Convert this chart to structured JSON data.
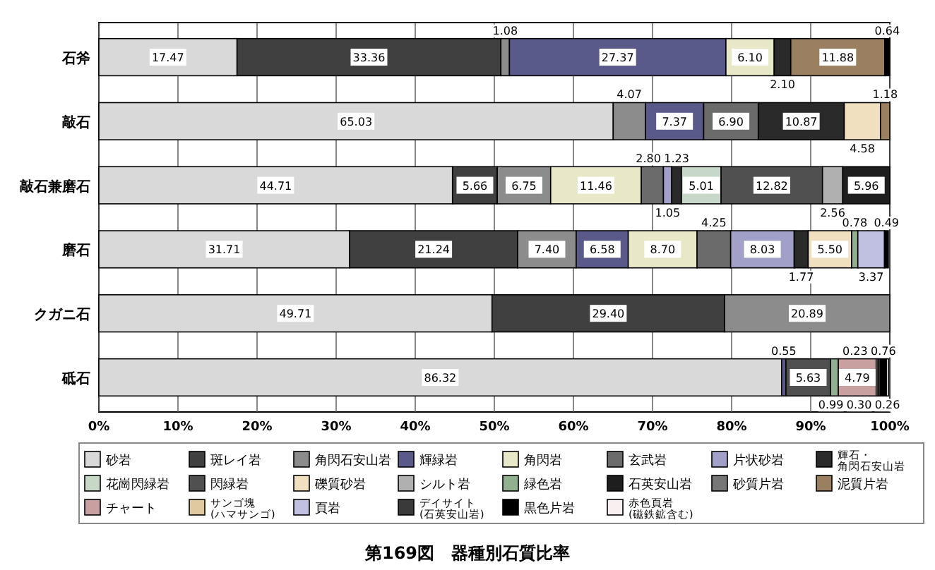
{
  "chart_data": {
    "type": "bar",
    "orientation": "horizontal",
    "stacked": true,
    "title": "第169図　器種別石質比率",
    "categories": [
      "石斧",
      "敲石",
      "敲石兼磨石",
      "磨石",
      "クガニ石",
      "砥石"
    ],
    "xlim": [
      0,
      100
    ],
    "xticks": [
      {
        "value": 0,
        "label": "0%"
      },
      {
        "value": 10,
        "label": "10%"
      },
      {
        "value": 20,
        "label": "20%"
      },
      {
        "value": 30,
        "label": "30%"
      },
      {
        "value": 40,
        "label": "40%"
      },
      {
        "value": 50,
        "label": "50%"
      },
      {
        "value": 60,
        "label": "60%"
      },
      {
        "value": 70,
        "label": "70%"
      },
      {
        "value": 80,
        "label": "80%"
      },
      {
        "value": 90,
        "label": "90%"
      },
      {
        "value": 100,
        "label": "100%"
      }
    ],
    "grid": "x",
    "legend": "bottom",
    "series": [
      {
        "name": "砂岩",
        "color": "#d9d9d9",
        "values": [
          17.47,
          65.03,
          44.71,
          31.71,
          49.71,
          86.32
        ],
        "value_labels": [
          "17.47",
          "65.03",
          "44.71",
          "31.71",
          "49.71",
          "86.32"
        ]
      },
      {
        "name": "斑レイ岩",
        "color": "#404040",
        "values": [
          33.36,
          null,
          5.66,
          21.24,
          29.4,
          null
        ],
        "value_labels": [
          "33.36",
          null,
          "5.66",
          "21.24",
          "29.40",
          null
        ]
      },
      {
        "name": "角閃石安山岩",
        "color": "#8c8c8c",
        "values": [
          1.08,
          4.07,
          6.75,
          7.4,
          20.89,
          null
        ],
        "value_labels": [
          "1.08",
          "4.07",
          "6.75",
          "7.40",
          "20.89",
          null
        ]
      },
      {
        "name": "輝緑岩",
        "color": "#5a5a8a",
        "values": [
          27.37,
          7.37,
          null,
          6.58,
          null,
          0.55
        ],
        "value_labels": [
          "27.37",
          "7.37",
          null,
          "6.58",
          null,
          "0.55"
        ]
      },
      {
        "name": "角閃岩",
        "color": "#e8e8c8",
        "values": [
          6.1,
          null,
          11.46,
          8.7,
          null,
          null
        ],
        "value_labels": [
          "6.10",
          null,
          "11.46",
          "8.70",
          null,
          null
        ]
      },
      {
        "name": "玄武岩",
        "color": "#6b6b6b",
        "values": [
          null,
          6.9,
          2.8,
          4.25,
          null,
          null
        ],
        "value_labels": [
          null,
          "6.90",
          "2.80",
          "4.25",
          null,
          null
        ]
      },
      {
        "name": "片状砂岩",
        "color": "#a0a0c8",
        "values": [
          null,
          null,
          1.05,
          8.03,
          null,
          null
        ],
        "value_labels": [
          null,
          null,
          "1.05",
          "8.03",
          null,
          null
        ]
      },
      {
        "name": "輝石・角閃石安山岩",
        "color": "#2a2a2a",
        "values": [
          2.1,
          10.87,
          1.23,
          1.77,
          null,
          null
        ],
        "value_labels": [
          "2.10",
          "10.87",
          "1.23",
          "1.77",
          null,
          null
        ]
      },
      {
        "name": "花崗閃緑岩",
        "color": "#c8d8c8",
        "values": [
          null,
          null,
          5.01,
          null,
          null,
          null
        ],
        "value_labels": [
          null,
          null,
          "5.01",
          null,
          null,
          null
        ]
      },
      {
        "name": "閃緑岩",
        "color": "#505050",
        "values": [
          null,
          null,
          12.82,
          null,
          null,
          5.63
        ],
        "value_labels": [
          null,
          null,
          "12.82",
          null,
          null,
          "5.63"
        ]
      },
      {
        "name": "礫質砂岩",
        "color": "#f0e0c0",
        "values": [
          null,
          4.58,
          null,
          5.5,
          null,
          null
        ],
        "value_labels": [
          null,
          "4.58",
          null,
          "5.50",
          null,
          null
        ]
      },
      {
        "name": "シルト岩",
        "color": "#b0b0b0",
        "values": [
          null,
          null,
          2.56,
          null,
          null,
          null
        ],
        "value_labels": [
          null,
          null,
          "2.56",
          null,
          null,
          null
        ]
      },
      {
        "name": "緑色岩",
        "color": "#90b090",
        "values": [
          null,
          null,
          null,
          0.78,
          null,
          0.99
        ],
        "value_labels": [
          null,
          null,
          null,
          "0.78",
          null,
          "0.99"
        ]
      },
      {
        "name": "石英安山岩",
        "color": "#1e1e1e",
        "values": [
          null,
          null,
          5.96,
          null,
          null,
          null
        ],
        "value_labels": [
          null,
          null,
          "5.96",
          null,
          null,
          null
        ]
      },
      {
        "name": "砂質片岩",
        "color": "#777777",
        "values": [
          null,
          null,
          null,
          null,
          null,
          null
        ]
      },
      {
        "name": "泥質片岩",
        "color": "#9a8060",
        "values": [
          11.88,
          1.18,
          null,
          null,
          null,
          null
        ],
        "value_labels": [
          "11.88",
          "1.18",
          null,
          null,
          null,
          null
        ]
      },
      {
        "name": "チャート",
        "color": "#c8a0a0",
        "values": [
          null,
          null,
          null,
          null,
          null,
          4.79
        ],
        "value_labels": [
          null,
          null,
          null,
          null,
          null,
          "4.79"
        ]
      },
      {
        "name": "サンゴ塊(ハマサンゴ)",
        "color": "#e0c8a0",
        "values": [
          null,
          null,
          null,
          null,
          null,
          0.23
        ],
        "value_labels": [
          null,
          null,
          null,
          null,
          null,
          "0.23"
        ]
      },
      {
        "name": "頁岩",
        "color": "#c0c0e0",
        "values": [
          null,
          null,
          null,
          3.37,
          null,
          null
        ],
        "value_labels": [
          null,
          null,
          null,
          "3.37",
          null,
          null
        ]
      },
      {
        "name": "デイサイト(石英安山岩)",
        "color": "#3a3a3a",
        "values": [
          null,
          null,
          null,
          null,
          null,
          0.3
        ],
        "value_labels": [
          null,
          null,
          null,
          null,
          null,
          "0.30"
        ]
      },
      {
        "name": "黒色片岩",
        "color": "#000000",
        "values": [
          0.64,
          null,
          null,
          0.49,
          null,
          0.76
        ],
        "value_labels": [
          "0.64",
          null,
          null,
          "0.49",
          null,
          "0.76"
        ]
      },
      {
        "name": "赤色頁岩(磁鉄鉱含む)",
        "color": "#f8f0f0",
        "values": [
          null,
          null,
          null,
          null,
          null,
          0.26
        ],
        "value_labels": [
          null,
          null,
          null,
          null,
          null,
          "0.26"
        ]
      }
    ]
  }
}
